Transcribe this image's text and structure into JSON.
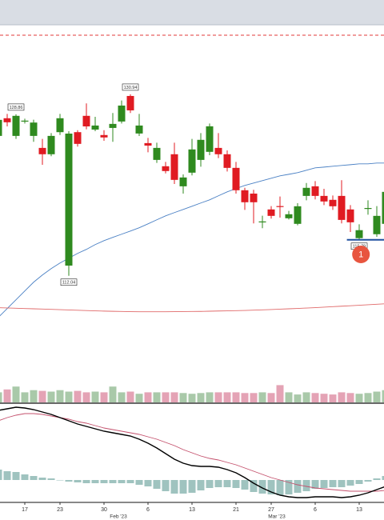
{
  "chart_data": [
    {
      "type": "candlestick",
      "open": [
        126.61,
        128.45,
        126.61,
        128.1,
        126.61,
        125.36,
        124.7,
        127.0,
        113.1,
        127.0,
        128.7,
        127.27,
        126.7,
        127.44,
        128.11,
        130.77,
        126.86,
        125.86,
        124.11,
        123.45,
        124.7,
        121.36,
        122.78,
        124.11,
        124.95,
        125.36,
        124.7,
        123.28,
        120.95,
        120.6,
        117.6,
        118.95,
        119.3,
        118.03,
        117.45,
        120.36,
        121.36,
        120.36,
        119.95,
        120.36,
        118.95,
        115.96,
        119.0,
        116.37,
        117.45
      ],
      "high": [
        129.11,
        128.9,
        128.86,
        128.4,
        128.3,
        126.3,
        126.9,
        128.9,
        127.1,
        127.2,
        130.0,
        128.6,
        127.2,
        129.0,
        130.3,
        130.94,
        128.9,
        126.4,
        125.9,
        123.9,
        125.9,
        122.6,
        126.3,
        126.9,
        127.9,
        126.9,
        125.1,
        123.9,
        121.2,
        121.0,
        118.3,
        119.3,
        120.3,
        118.8,
        119.6,
        121.7,
        121.9,
        121.1,
        120.4,
        122.0,
        119.4,
        117.4,
        119.9,
        119.3,
        121.4
      ],
      "low": [
        126.2,
        127.6,
        126.3,
        127.9,
        126.0,
        123.6,
        124.5,
        126.7,
        112.04,
        125.5,
        127.3,
        127.1,
        126.1,
        126.0,
        127.9,
        129.0,
        126.6,
        124.9,
        123.8,
        122.7,
        121.6,
        120.6,
        122.5,
        123.4,
        124.6,
        124.3,
        122.9,
        120.6,
        118.9,
        117.5,
        117.0,
        118.0,
        118.1,
        117.9,
        117.3,
        119.9,
        120.0,
        119.4,
        118.9,
        117.5,
        116.6,
        115.79,
        118.4,
        116.1,
        117.0
      ],
      "close": [
        128.28,
        128.03,
        128.7,
        128.2,
        128.0,
        124.7,
        126.61,
        128.45,
        126.85,
        125.78,
        127.6,
        127.69,
        126.45,
        127.86,
        129.77,
        129.27,
        127.69,
        125.6,
        125.36,
        122.95,
        122.03,
        122.28,
        125.2,
        126.2,
        127.61,
        124.7,
        123.28,
        120.95,
        119.7,
        119.7,
        117.7,
        118.28,
        119.2,
        118.45,
        119.28,
        121.2,
        120.36,
        119.78,
        119.28,
        117.86,
        117.61,
        116.79,
        119.1,
        118.28,
        120.78
      ],
      "high_labels": [
        null,
        null,
        "128.86",
        null,
        null,
        null,
        null,
        null,
        null,
        null,
        null,
        null,
        null,
        null,
        null,
        "130.94",
        null,
        null,
        null,
        null,
        null,
        null,
        null,
        null,
        null,
        null,
        null,
        null,
        null,
        null,
        null,
        null,
        null,
        null,
        null,
        null,
        null,
        null,
        null,
        null,
        null,
        null,
        null,
        null,
        null
      ],
      "low_labels": [
        null,
        null,
        null,
        null,
        null,
        null,
        null,
        null,
        "112.04",
        null,
        null,
        null,
        null,
        null,
        null,
        null,
        null,
        null,
        null,
        null,
        null,
        null,
        null,
        null,
        null,
        null,
        null,
        null,
        null,
        null,
        null,
        null,
        null,
        null,
        null,
        null,
        null,
        null,
        null,
        null,
        null,
        "115.79",
        null,
        null,
        null
      ],
      "up_color": "#2f8a1f",
      "down_color": "#e01b22",
      "ylim": [
        101.6,
        138.1
      ],
      "moving_averages": [
        {
          "color": "#4a80c4",
          "values": [
            107.71,
            108.63,
            109.54,
            110.46,
            111.37,
            112.12,
            112.79,
            113.37,
            113.87,
            114.37,
            114.79,
            115.29,
            115.7,
            116.04,
            116.37,
            116.7,
            117.04,
            117.45,
            117.87,
            118.28,
            118.62,
            118.95,
            119.28,
            119.62,
            119.95,
            120.37,
            120.78,
            121.12,
            121.45,
            121.7,
            121.95,
            122.2,
            122.45,
            122.61,
            122.78,
            123.03,
            123.28,
            123.36,
            123.45,
            123.53,
            123.61,
            123.7,
            123.7,
            123.78,
            123.78
          ]
        },
        {
          "color": "#e06a6a",
          "values": [
            108.71,
            108.69,
            108.66,
            108.63,
            108.6,
            108.57,
            108.54,
            108.51,
            108.48,
            108.45,
            108.42,
            108.39,
            108.36,
            108.34,
            108.32,
            108.3,
            108.29,
            108.29,
            108.29,
            108.29,
            108.3,
            108.31,
            108.32,
            108.33,
            108.35,
            108.37,
            108.39,
            108.41,
            108.43,
            108.46,
            108.49,
            108.52,
            108.56,
            108.6,
            108.64,
            108.68,
            108.72,
            108.77,
            108.82,
            108.87,
            108.92,
            108.97,
            109.02,
            109.07,
            109.13
          ]
        }
      ],
      "alert_line": {
        "value": 137.1,
        "color": "#e03a3a"
      },
      "support_line": {
        "value": 115.79,
        "color": "#1f4f9f"
      },
      "marker": {
        "label": "1",
        "color": "#e8553f"
      }
    },
    {
      "type": "volume",
      "values": [
        14,
        18,
        22,
        14,
        17,
        16,
        15,
        17,
        15,
        16,
        14,
        15,
        14,
        22,
        14,
        15,
        12,
        14,
        14,
        14,
        14,
        13,
        12,
        13,
        14,
        14,
        14,
        14,
        13,
        13,
        14,
        13,
        24,
        14,
        11,
        14,
        13,
        12,
        11,
        14,
        13,
        12,
        13,
        15,
        17
      ],
      "up_color": "#a9c9a9",
      "down_color": "#e4a3b5",
      "ylim": [
        0,
        30
      ]
    },
    {
      "type": "macd",
      "macd": [
        8.7,
        8.9,
        9.1,
        9.0,
        8.8,
        8.5,
        8.2,
        7.8,
        7.4,
        7.0,
        6.7,
        6.4,
        6.1,
        5.9,
        5.7,
        5.5,
        5.1,
        4.6,
        4.0,
        3.3,
        2.6,
        2.1,
        1.8,
        1.7,
        1.7,
        1.6,
        1.3,
        0.9,
        0.3,
        -0.4,
        -1.0,
        -1.5,
        -1.9,
        -2.1,
        -2.2,
        -2.2,
        -2.1,
        -2.1,
        -2.1,
        -2.2,
        -2.1,
        -1.9,
        -1.6,
        -1.2,
        -0.8
      ],
      "signal": [
        7.4,
        7.8,
        8.1,
        8.3,
        8.3,
        8.2,
        8.0,
        7.8,
        7.6,
        7.3,
        7.1,
        6.8,
        6.5,
        6.3,
        6.1,
        5.9,
        5.7,
        5.4,
        5.1,
        4.7,
        4.3,
        3.8,
        3.4,
        3.0,
        2.7,
        2.5,
        2.2,
        1.9,
        1.5,
        1.1,
        0.7,
        0.3,
        0.0,
        -0.3,
        -0.6,
        -0.8,
        -1.0,
        -1.1,
        -1.2,
        -1.3,
        -1.4,
        -1.4,
        -1.4,
        -1.4,
        -1.3
      ],
      "histogram": [
        1.3,
        1.1,
        1.0,
        0.7,
        0.5,
        0.3,
        0.2,
        0.0,
        -0.2,
        -0.3,
        -0.4,
        -0.4,
        -0.4,
        -0.4,
        -0.4,
        -0.4,
        -0.6,
        -0.8,
        -1.1,
        -1.4,
        -1.7,
        -1.7,
        -1.6,
        -1.3,
        -1.0,
        -0.9,
        -0.9,
        -1.0,
        -1.2,
        -1.5,
        -1.7,
        -1.8,
        -1.9,
        -1.8,
        -1.6,
        -1.4,
        -1.1,
        -1.0,
        -0.9,
        -0.9,
        -0.7,
        -0.5,
        -0.2,
        0.2,
        0.5
      ],
      "macd_color": "#000000",
      "signal_color": "#c4506c",
      "hist_color": "#9fc3bf",
      "ylim": [
        -2.8,
        9.5
      ],
      "categories": [
        null,
        null,
        null,
        "17",
        null,
        null,
        null,
        "23",
        null,
        null,
        null,
        null,
        "30",
        null,
        null,
        null,
        null,
        "6",
        null,
        null,
        null,
        null,
        "13",
        null,
        null,
        null,
        null,
        "21",
        null,
        null,
        null,
        "27",
        null,
        null,
        null,
        null,
        "6",
        null,
        null,
        null,
        null,
        "13",
        null,
        null,
        null
      ],
      "month_labels": [
        null,
        null,
        null,
        null,
        null,
        null,
        null,
        null,
        null,
        null,
        null,
        null,
        null,
        null,
        "Feb '23",
        null,
        null,
        null,
        null,
        null,
        null,
        null,
        null,
        null,
        null,
        null,
        null,
        null,
        null,
        null,
        null,
        null,
        "Mar '23",
        null,
        null,
        null,
        null,
        null,
        null,
        null,
        null,
        null,
        null,
        null,
        null
      ]
    }
  ]
}
